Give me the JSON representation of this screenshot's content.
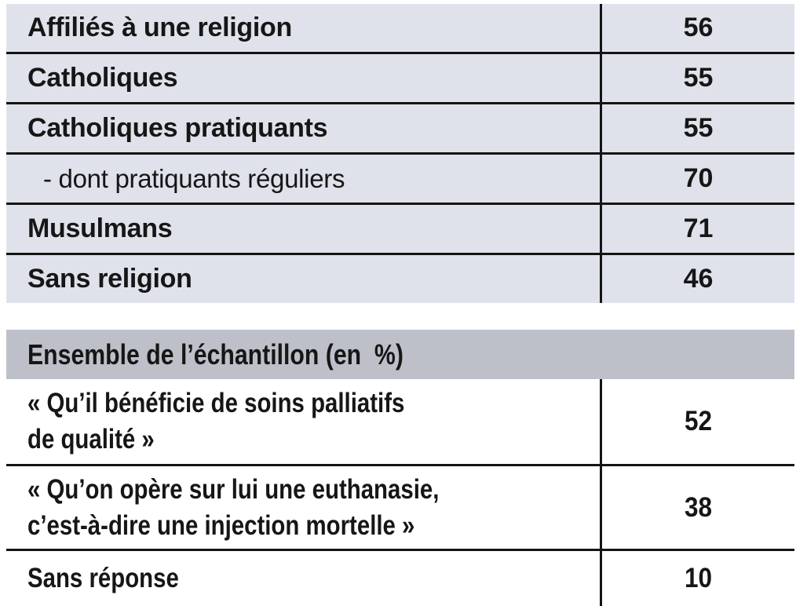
{
  "colors": {
    "page_background": "#ffffff",
    "religion_row_background": "#dfe2ea",
    "section_header_background": "#bdc0c8",
    "rule_color": "#141414",
    "text_color": "#161616"
  },
  "religion_table": {
    "rows": [
      {
        "label": "Affiliés à une religion",
        "value": "56"
      },
      {
        "label": "Catholiques",
        "value": "55"
      },
      {
        "label": "Catholiques pratiquants",
        "value": "55"
      },
      {
        "label": "- dont pratiquants réguliers",
        "value": "70"
      },
      {
        "label": "Musulmans",
        "value": "71"
      },
      {
        "label": "Sans religion",
        "value": "46"
      }
    ]
  },
  "sample_table": {
    "header": "Ensemble de l’échantillon (en  %)",
    "rows": [
      {
        "line1": "« Qu’il bénéficie de soins palliatifs",
        "line2": "de qualité »",
        "value": "52"
      },
      {
        "line1": "« Qu’on opère sur lui une euthanasie,",
        "line2": "c’est-à-dire une injection mortelle »",
        "value": "38"
      },
      {
        "line1": "Sans réponse",
        "line2": "",
        "value": "10"
      }
    ]
  }
}
